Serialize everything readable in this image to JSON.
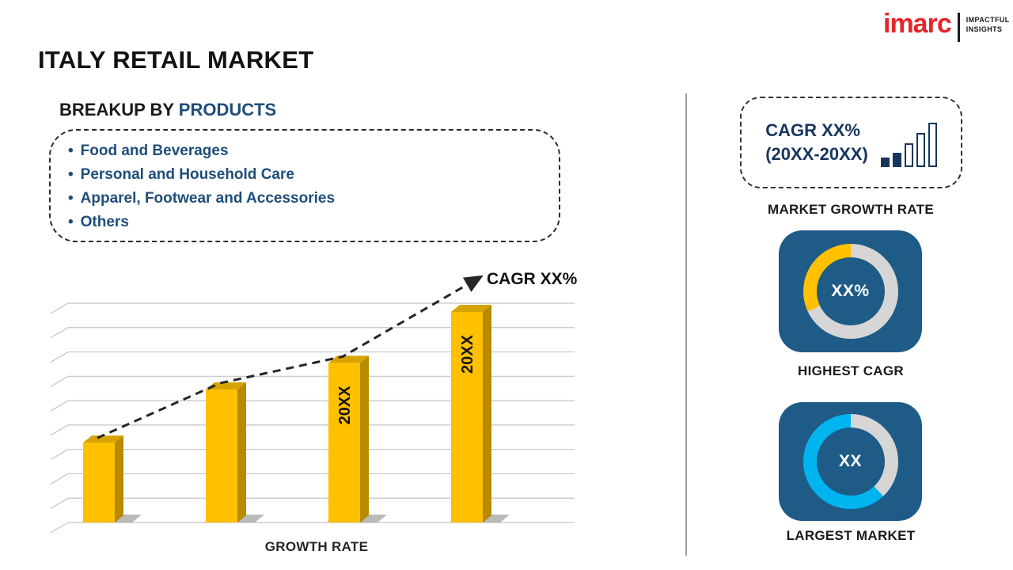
{
  "page": {
    "title": "ITALY RETAIL MARKET"
  },
  "logo": {
    "brand": "imarc",
    "tagline_line1": "IMPACTFUL",
    "tagline_line2": "INSIGHTS",
    "brand_color": "#e5262b"
  },
  "breakup": {
    "heading_prefix": "BREAKUP BY ",
    "heading_highlight": "PRODUCTS",
    "items": [
      "Food and Beverages",
      "Personal and Household Care",
      "Apparel, Footwear and Accessories",
      "Others"
    ]
  },
  "chart_data": {
    "type": "bar",
    "title": "",
    "xlabel": "GROWTH RATE",
    "ylabel": "",
    "categories": [
      "",
      "",
      "",
      ""
    ],
    "values": [
      36,
      60,
      72,
      95
    ],
    "bar_labels": [
      "",
      "",
      "20XX",
      "20XX"
    ],
    "trend_label": "CAGR XX%",
    "trend_style": "dashed-arrow",
    "ylim": [
      0,
      100
    ],
    "grid": true,
    "gridline_count": 10,
    "bar_color": "#ffc000",
    "bar_side_color": "#b78a00",
    "bar_top_color": "#d6a300",
    "trend_color": "#262626"
  },
  "sidebar": {
    "growth_card": {
      "line1": "CAGR XX%",
      "line2": "(20XX-20XX)",
      "caption": "MARKET GROWTH RATE",
      "icon": "bar-chart-icon"
    },
    "highest_cagr": {
      "value": "XX%",
      "caption": "HIGHEST CAGR",
      "accent": "#ffc000",
      "ring": "#d6d6d6",
      "fraction": 0.32,
      "card_color": "#1e5b86"
    },
    "largest_market": {
      "value": "XX",
      "caption": "LARGEST MARKET",
      "accent": "#00b4ef",
      "ring": "#d6d6d6",
      "fraction": 0.62,
      "card_color": "#1e5b86"
    }
  }
}
